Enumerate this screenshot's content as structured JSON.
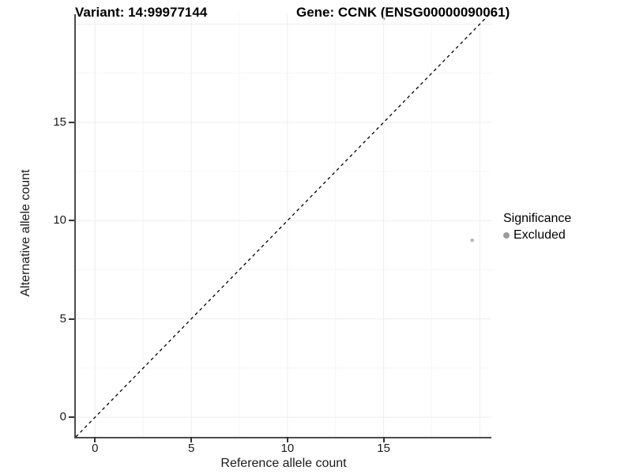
{
  "figure": {
    "title_left": "Variant: 14:99977144",
    "title_right": "Gene: CCNK (ENSG00000090061)"
  },
  "axes": {
    "x_title": "Reference allele count",
    "y_title": "Alternative allele count"
  },
  "legend": {
    "title": "Significance",
    "items": [
      {
        "label": "Excluded",
        "color": "#9c9c9c"
      }
    ]
  },
  "colors": {
    "axis_line": "#4d4d4d",
    "tick_mark": "#333333",
    "grid_major": "#ededed",
    "grid_minor": "#f6f6f6",
    "reference_line": "#000000",
    "point": "#b9b9b9"
  },
  "chart_data": {
    "type": "scatter",
    "title": "Variant: 14:99977144 — Gene: CCNK (ENSG00000090061)",
    "xlabel": "Reference allele count",
    "ylabel": "Alternative allele count",
    "x_ticks": [
      0,
      5,
      10,
      15
    ],
    "y_ticks": [
      0,
      5,
      10,
      15
    ],
    "x_grid_major": [
      0,
      5,
      10,
      15,
      20
    ],
    "y_grid_major": [
      0,
      5,
      10,
      15,
      20
    ],
    "x_grid_minor": [
      2.5,
      7.5,
      12.5,
      17.5
    ],
    "y_grid_minor": [
      2.5,
      7.5,
      12.5,
      17.5
    ],
    "xlim": [
      -1,
      20.6
    ],
    "ylim": [
      -1,
      20.5
    ],
    "grid": "very light major and minor gridlines",
    "legend_position": "right",
    "reference_line": {
      "kind": "identity y=x",
      "style": "dashed",
      "color": "#000000"
    },
    "series": [
      {
        "name": "Excluded",
        "color": "#b9b9b9",
        "marker_radius_px": 2.3,
        "points": [
          {
            "x": 19.6,
            "y": 9
          }
        ]
      }
    ]
  }
}
